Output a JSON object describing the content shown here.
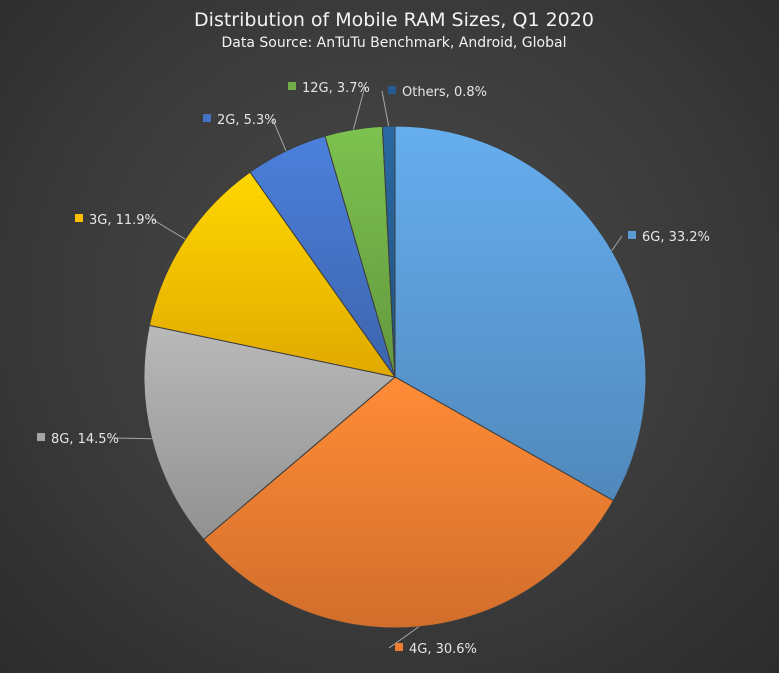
{
  "chart_data": {
    "type": "pie",
    "title": "Distribution of Mobile RAM Sizes, Q1 2020",
    "subtitle": "Data Source: AnTuTu Benchmark, Android, Global",
    "slices": [
      {
        "label": "6G",
        "value": 33.2,
        "text": "6G, 33.2%",
        "color": "#5b9bd5"
      },
      {
        "label": "4G",
        "value": 30.6,
        "text": "4G, 30.6%",
        "color": "#ed7d31"
      },
      {
        "label": "8G",
        "value": 14.5,
        "text": "8G, 14.5%",
        "color": "#a5a5a5"
      },
      {
        "label": "3G",
        "value": 11.9,
        "text": "3G, 11.9%",
        "color": "#ffc000"
      },
      {
        "label": "2G",
        "value": 5.3,
        "text": "2G, 5.3%",
        "color": "#4472c4"
      },
      {
        "label": "12G",
        "value": 3.7,
        "text": "12G, 3.7%",
        "color": "#70ad47"
      },
      {
        "label": "Others",
        "value": 0.8,
        "text": "Others, 0.8%",
        "color": "#255e91"
      }
    ],
    "start_angle": "12 o'clock",
    "direction": "clockwise",
    "legend": "none (data labels with category and percentage)"
  }
}
